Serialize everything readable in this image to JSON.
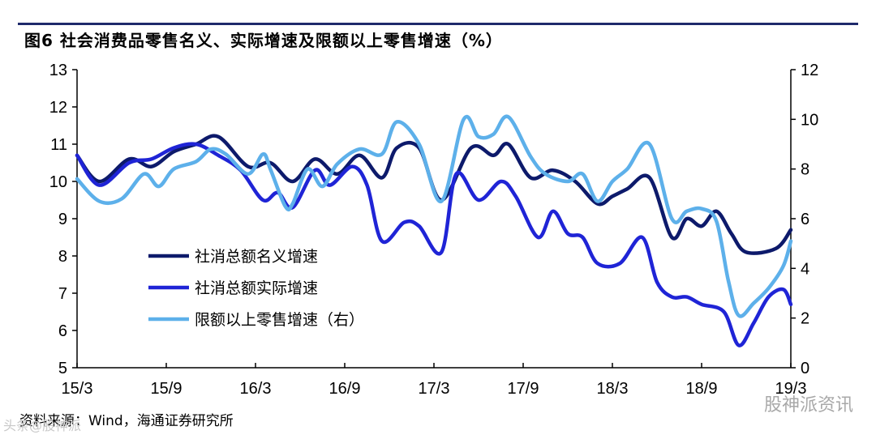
{
  "header": {
    "title": "图6  社会消费品零售名义、实际增速及限额以上零售增速（%）"
  },
  "footer": {
    "source": "资料来源：Wind，海通证券研究所"
  },
  "watermark": {
    "text": "股神派资讯",
    "left_text": "头条@股神派"
  },
  "colors": {
    "nominal": "#0d1a6b",
    "real": "#1f24d6",
    "above_quota": "#5db0ea",
    "axis": "#000000",
    "rule": "#1f2a6b"
  },
  "chart_data": {
    "type": "line",
    "title": "社会消费品零售名义、实际增速及限额以上零售增速（%）",
    "x_tick_labels": [
      "15/3",
      "15/9",
      "16/3",
      "16/9",
      "17/3",
      "17/9",
      "18/3",
      "18/9",
      "19/3"
    ],
    "x_range": [
      0,
      48
    ],
    "y_left": {
      "range": [
        5,
        13
      ],
      "ticks": [
        5,
        6,
        7,
        8,
        9,
        10,
        11,
        12,
        13
      ]
    },
    "y_right": {
      "range": [
        0,
        12
      ],
      "ticks": [
        0,
        2,
        4,
        6,
        8,
        10,
        12
      ]
    },
    "grid": false,
    "legend_position": "middle-left",
    "series": [
      {
        "name": "社消总额名义增速",
        "axis": "left",
        "x": [
          0,
          1.5,
          3.5,
          5,
          6.5,
          8,
          9.5,
          11.5,
          13,
          14.5,
          16,
          17.5,
          19,
          20.5,
          21.5,
          23,
          24.5,
          26.5,
          28,
          29,
          30.5,
          32,
          33.5,
          35,
          36,
          37,
          38.5,
          40,
          41,
          42,
          43,
          44,
          45,
          47,
          48
        ],
        "values": [
          10.7,
          10.0,
          10.6,
          10.4,
          10.8,
          11.0,
          11.2,
          10.4,
          10.5,
          10.0,
          10.6,
          10.2,
          10.7,
          10.1,
          10.9,
          10.9,
          9.5,
          10.9,
          10.7,
          11.0,
          10.1,
          10.3,
          10.0,
          9.4,
          9.6,
          9.8,
          10.1,
          8.5,
          9.0,
          8.8,
          9.2,
          8.6,
          8.1,
          8.2,
          8.7
        ]
      },
      {
        "name": "社消总额实际增速",
        "axis": "left",
        "x": [
          0,
          1.5,
          3.5,
          5,
          6.5,
          8,
          9.5,
          11,
          12.5,
          13.5,
          14.5,
          16,
          17,
          18.5,
          19.5,
          20.5,
          22,
          23,
          24.5,
          25.5,
          27,
          28.5,
          29.5,
          31,
          32,
          33,
          34,
          35,
          36.5,
          38,
          39,
          40,
          41,
          42,
          43.5,
          44.5,
          45.5,
          46.5,
          47.5,
          48
        ],
        "values": [
          10.7,
          9.9,
          10.5,
          10.6,
          10.9,
          11.0,
          10.7,
          10.3,
          9.5,
          9.7,
          9.3,
          10.3,
          9.9,
          10.4,
          9.9,
          8.4,
          8.9,
          8.8,
          8.1,
          10.2,
          9.5,
          10.0,
          9.6,
          8.5,
          9.2,
          8.6,
          8.5,
          7.8,
          7.8,
          8.5,
          7.3,
          6.9,
          6.9,
          6.7,
          6.5,
          5.6,
          6.2,
          6.9,
          7.1,
          6.7
        ]
      },
      {
        "name": "限额以上零售增速（右）",
        "axis": "right",
        "x": [
          0,
          1.5,
          3,
          4.5,
          5.5,
          6.5,
          8,
          9,
          10,
          11.5,
          12.5,
          13,
          14,
          14.5,
          15.5,
          16.5,
          17.5,
          19,
          20.5,
          21.5,
          23,
          24.5,
          26,
          27,
          28,
          29,
          30.5,
          31.5,
          33,
          34,
          35,
          36,
          37,
          38.5,
          40,
          41,
          42,
          43,
          43.8,
          44.5,
          45.5,
          46.5,
          47.5,
          48
        ],
        "values": [
          7.6,
          6.7,
          6.8,
          7.8,
          7.3,
          8.0,
          8.3,
          8.8,
          8.6,
          7.8,
          8.6,
          8.0,
          6.5,
          6.6,
          8.0,
          7.3,
          8.2,
          8.8,
          8.6,
          9.9,
          9.0,
          6.7,
          10.0,
          9.3,
          9.4,
          10.1,
          8.5,
          7.8,
          7.5,
          7.8,
          6.7,
          7.5,
          8.0,
          9.0,
          6.0,
          6.3,
          6.4,
          5.9,
          3.5,
          2.1,
          2.6,
          3.2,
          4.1,
          5.1
        ]
      }
    ]
  }
}
